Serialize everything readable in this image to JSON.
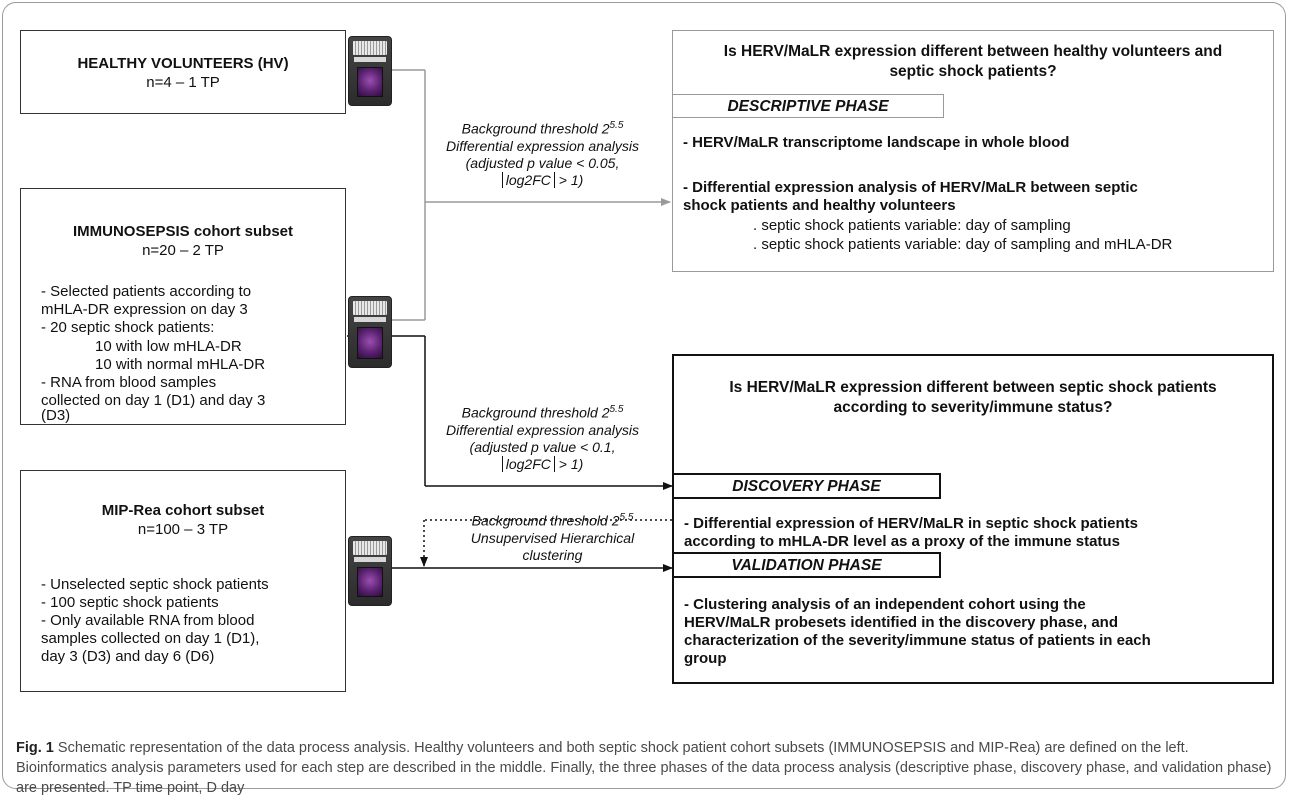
{
  "hv": {
    "title": "HEALTHY VOLUNTEERS (HV)",
    "n": "n=4 – 1 TP"
  },
  "immuno": {
    "title": "IMMUNOSEPSIS cohort subset",
    "n": "n=20 – 2 TP",
    "lines": [
      "- Selected patients according to",
      "mHLA-DR expression on day 3",
      "- 20 septic shock patients:",
      "10 with low mHLA-DR",
      "10 with normal mHLA-DR",
      "- RNA from blood samples",
      "collected on day 1 (D1) and day 3",
      "(D3)"
    ]
  },
  "mip": {
    "title": "MIP-Rea cohort subset",
    "n": "n=100 – 3 TP",
    "lines": [
      "- Unselected septic shock patients",
      "- 100 septic shock patients",
      "- Only available RNA from blood",
      "samples collected on day 1 (D1),",
      "day 3 (D3) and day 6 (D6)"
    ]
  },
  "params1": {
    "bg_prefix": "Background threshold 2",
    "bg_exp": "5.5",
    "line2": "Differential expression analysis",
    "line3": "(adjusted p value < 0.05,",
    "line4_inner": "log2FC",
    "line4_suffix": " > 1)"
  },
  "params2": {
    "bg_prefix": "Background threshold 2",
    "bg_exp": "5.5",
    "line2": "Differential expression analysis",
    "line3": "(adjusted p value < 0.1,",
    "line4_inner": "log2FC",
    "line4_suffix": " > 1)"
  },
  "params3": {
    "bg_prefix": "Background threshold 2",
    "bg_exp": "5.5",
    "line2": "Unsupervised Hierarchical",
    "line3": "clustering"
  },
  "q1": {
    "line1": "Is HERV/MaLR expression different between healthy volunteers and",
    "line2": "septic shock patients?"
  },
  "descriptive": {
    "label": "DESCRIPTIVE PHASE",
    "b1": "- HERV/MaLR transcriptome landscape in whole blood",
    "b2a": "- Differential expression analysis of HERV/MaLR between septic",
    "b2b": "shock patients and healthy volunteers",
    "s1": ". septic shock patients variable: day of sampling",
    "s2": ". septic shock patients variable: day of sampling and mHLA-DR"
  },
  "q2": {
    "line1": "Is HERV/MaLR expression different between septic shock patients",
    "line2": "according to severity/immune status?"
  },
  "discovery": {
    "label": "DISCOVERY PHASE",
    "b1": "- Differential expression of HERV/MaLR in septic shock patients",
    "b2": "according to mHLA-DR level as a proxy of the immune status"
  },
  "validation": {
    "label": "VALIDATION PHASE",
    "b1": "- Clustering analysis of an independent cohort using the",
    "b2": "HERV/MaLR probesets identified in the discovery phase, and",
    "b3": "characterization of the severity/immune status of patients in each",
    "b4": "group"
  },
  "caption": {
    "fig": "Fig. 1",
    "text": " Schematic representation of the data process analysis. Healthy volunteers and both septic shock patient cohort subsets (IMMUNOSEPSIS and MIP-Rea) are defined on the left. Bioinformatics analysis parameters used for each step are described in the middle. Finally, the three phases of the data process analysis (descriptive phase, discovery phase, and validation phase) are presented. TP time point, D day"
  },
  "colors": {
    "gray_line": "#9a9a9a",
    "dark_line": "#111111",
    "chip": "#333333",
    "chip_array": "#6a2a85"
  },
  "icons": [
    "microarray-chip-icon"
  ]
}
